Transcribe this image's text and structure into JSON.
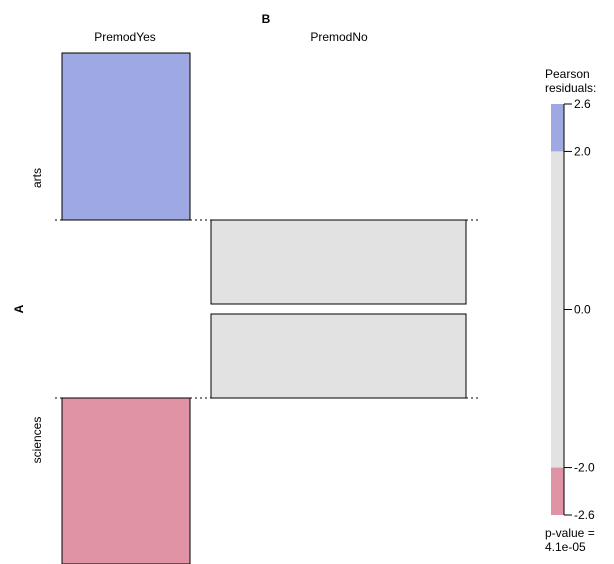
{
  "chart_data": {
    "type": "mosaic",
    "var_a": {
      "name": "A",
      "levels": [
        "arts",
        "sciences"
      ]
    },
    "var_b": {
      "name": "B",
      "levels": [
        "PremodYes",
        "PremodNo"
      ]
    },
    "cells": [
      {
        "a": "arts",
        "b": "PremodYes",
        "residual_band": "above 2.0",
        "color": "#9ea9e3"
      },
      {
        "a": "arts",
        "b": "PremodNo",
        "residual_band": "between -2.0 and 2.0",
        "color": "#e2e2e2"
      },
      {
        "a": "sciences",
        "b": "PremodYes",
        "residual_band": "below -2.0",
        "color": "#e193a6"
      },
      {
        "a": "sciences",
        "b": "PremodNo",
        "residual_band": "between -2.0 and 2.0",
        "color": "#e2e2e2"
      }
    ],
    "legend": {
      "title_line1": "Pearson",
      "title_line2": "residuals:",
      "ticks": [
        "2.6",
        "2.0",
        "0.0",
        "-2.0",
        "-2.6"
      ],
      "tick_values": [
        2.6,
        2.0,
        0.0,
        -2.0,
        -2.6
      ],
      "range": [
        -2.6,
        2.6
      ],
      "shading_cutoffs": [
        -2.0,
        2.0
      ],
      "colors": {
        "positive": "#9ea9e3",
        "neutral": "#e2e2e2",
        "negative": "#e193a6"
      }
    },
    "pvalue_line1": "p-value =",
    "pvalue_line2": "4.1e-05"
  }
}
